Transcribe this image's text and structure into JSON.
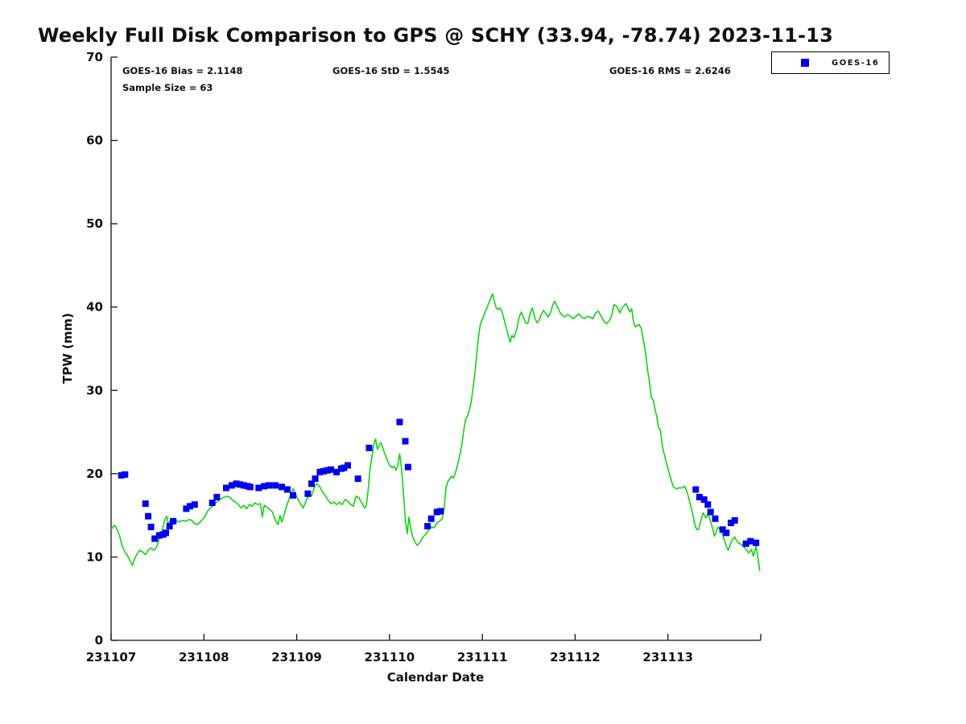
{
  "title": "Weekly Full Disk Comparison to GPS @ SCHY (33.94, -78.74) 2023-11-13",
  "annotations": {
    "bias": "GOES-16 Bias = 2.1148",
    "std": "GOES-16 StD = 1.5545",
    "rms": "GOES-16 RMS = 2.6246",
    "sample_size": "Sample Size = 63"
  },
  "legend": {
    "position": "top-right",
    "entries": [
      {
        "label": "GOES-16",
        "marker": "square",
        "color": "#0000ee"
      }
    ]
  },
  "chart_data": {
    "type": "line+scatter",
    "title": "Weekly Full Disk Comparison to GPS @ SCHY (33.94, -78.74) 2023-11-13",
    "xlabel": "Calendar Date",
    "ylabel": "TPW (mm)",
    "grid": false,
    "x_base": 231107,
    "xlim": [
      231107,
      231114
    ],
    "ylim": [
      0,
      70
    ],
    "yticks": [
      0,
      10,
      20,
      30,
      40,
      50,
      60,
      70
    ],
    "xticks": [
      231107,
      231108,
      231109,
      231110,
      231111,
      231112,
      231113
    ],
    "series": [
      {
        "name": "GPS",
        "type": "line",
        "color": "#00d400",
        "x_days": [
          0.0,
          0.02,
          0.04,
          0.06,
          0.09,
          0.12,
          0.15,
          0.18,
          0.21,
          0.23,
          0.25,
          0.28,
          0.31,
          0.34,
          0.37,
          0.4,
          0.43,
          0.46,
          0.49,
          0.52,
          0.55,
          0.58,
          0.6,
          0.62,
          0.64,
          0.67,
          0.7,
          0.73,
          0.77,
          0.8,
          0.84,
          0.87,
          0.9,
          0.93,
          0.96,
          1.0,
          1.04,
          1.08,
          1.12,
          1.16,
          1.2,
          1.25,
          1.28,
          1.31,
          1.34,
          1.37,
          1.4,
          1.43,
          1.46,
          1.49,
          1.52,
          1.55,
          1.58,
          1.61,
          1.63,
          1.65,
          1.68,
          1.71,
          1.74,
          1.77,
          1.8,
          1.82,
          1.84,
          1.87,
          1.9,
          1.93,
          1.96,
          1.99,
          2.02,
          2.05,
          2.07,
          2.1,
          2.13,
          2.16,
          2.19,
          2.22,
          2.25,
          2.28,
          2.31,
          2.34,
          2.37,
          2.4,
          2.43,
          2.46,
          2.49,
          2.52,
          2.55,
          2.58,
          2.61,
          2.64,
          2.67,
          2.7,
          2.73,
          2.75,
          2.77,
          2.79,
          2.81,
          2.83,
          2.85,
          2.87,
          2.89,
          2.91,
          2.94,
          2.97,
          3.0,
          3.03,
          3.05,
          3.07,
          3.09,
          3.11,
          3.13,
          3.15,
          3.17,
          3.19,
          3.21,
          3.23,
          3.25,
          3.28,
          3.3,
          3.33,
          3.36,
          3.39,
          3.42,
          3.45,
          3.48,
          3.51,
          3.54,
          3.57,
          3.59,
          3.61,
          3.63,
          3.65,
          3.67,
          3.69,
          3.72,
          3.75,
          3.78,
          3.8,
          3.82,
          3.84,
          3.86,
          3.88,
          3.9,
          3.92,
          3.94,
          3.96,
          3.98,
          4.0,
          4.03,
          4.06,
          4.08,
          4.11,
          4.13,
          4.15,
          4.17,
          4.19,
          4.21,
          4.24,
          4.27,
          4.3,
          4.32,
          4.34,
          4.37,
          4.4,
          4.42,
          4.44,
          4.47,
          4.49,
          4.52,
          4.54,
          4.56,
          4.59,
          4.61,
          4.64,
          4.66,
          4.69,
          4.71,
          4.74,
          4.76,
          4.78,
          4.81,
          4.83,
          4.86,
          4.89,
          4.92,
          4.95,
          4.98,
          5.01,
          5.04,
          5.07,
          5.1,
          5.13,
          5.16,
          5.19,
          5.22,
          5.25,
          5.28,
          5.31,
          5.34,
          5.37,
          5.39,
          5.42,
          5.45,
          5.48,
          5.5,
          5.53,
          5.55,
          5.57,
          5.59,
          5.61,
          5.63,
          5.65,
          5.67,
          5.69,
          5.71,
          5.73,
          5.76,
          5.78,
          5.8,
          5.82,
          5.84,
          5.86,
          5.88,
          5.9,
          5.92,
          5.94,
          5.97,
          6.0,
          6.03,
          6.06,
          6.09,
          6.12,
          6.15,
          6.18,
          6.21,
          6.24,
          6.27,
          6.29,
          6.31,
          6.33,
          6.36,
          6.38,
          6.41,
          6.43,
          6.45,
          6.47,
          6.5,
          6.52,
          6.54,
          6.56,
          6.58,
          6.61,
          6.63,
          6.65,
          6.67,
          6.69,
          6.72,
          6.74,
          6.76,
          6.79,
          6.82,
          6.85,
          6.87,
          6.9,
          6.92,
          6.95,
          6.97,
          6.99
        ],
        "y": [
          13.3,
          13.6,
          13.8,
          13.4,
          12.6,
          11.3,
          10.6,
          10.1,
          9.4,
          9.0,
          9.7,
          10.4,
          10.8,
          10.6,
          10.3,
          10.8,
          11.1,
          10.8,
          11.2,
          12.2,
          13.2,
          14.5,
          14.9,
          13.8,
          14.5,
          14.2,
          14.4,
          14.2,
          14.4,
          14.3,
          14.5,
          14.4,
          14.0,
          13.9,
          14.2,
          14.7,
          15.5,
          16.0,
          16.4,
          16.8,
          17.1,
          17.3,
          17.2,
          16.8,
          16.6,
          16.3,
          15.9,
          16.2,
          15.8,
          16.3,
          16.1,
          16.5,
          16.3,
          16.4,
          14.8,
          16.2,
          16.0,
          15.7,
          15.4,
          14.4,
          13.9,
          15.0,
          14.2,
          15.3,
          16.4,
          17.3,
          18.2,
          17.5,
          16.8,
          16.2,
          15.9,
          16.7,
          17.4,
          17.3,
          18.4,
          18.8,
          18.4,
          17.8,
          17.3,
          16.8,
          16.4,
          16.6,
          16.3,
          16.6,
          16.3,
          16.9,
          16.7,
          16.3,
          16.1,
          17.3,
          17.1,
          16.5,
          15.9,
          16.1,
          18.0,
          20.5,
          22.0,
          23.4,
          24.2,
          22.9,
          23.5,
          23.7,
          22.7,
          21.8,
          21.0,
          20.7,
          20.9,
          20.4,
          21.0,
          22.4,
          20.6,
          17.8,
          14.5,
          12.8,
          14.8,
          13.4,
          12.4,
          11.7,
          11.4,
          11.8,
          12.4,
          12.7,
          13.2,
          13.6,
          13.5,
          14.1,
          14.3,
          14.6,
          16.0,
          18.4,
          19.1,
          19.4,
          19.7,
          19.5,
          20.5,
          21.8,
          23.5,
          25.2,
          26.5,
          26.9,
          27.6,
          28.6,
          30.2,
          32.0,
          34.3,
          36.5,
          38.0,
          38.5,
          39.4,
          40.2,
          40.8,
          41.6,
          40.7,
          39.9,
          39.7,
          39.9,
          39.5,
          38.3,
          37.0,
          35.8,
          36.6,
          36.3,
          37.3,
          38.9,
          39.4,
          38.8,
          38.1,
          38.0,
          39.4,
          39.9,
          38.9,
          38.1,
          38.4,
          39.2,
          39.6,
          39.1,
          38.8,
          39.5,
          40.3,
          40.7,
          40.0,
          39.5,
          39.0,
          38.8,
          39.1,
          38.9,
          38.6,
          38.9,
          39.2,
          38.8,
          38.6,
          38.9,
          38.8,
          38.6,
          39.3,
          39.5,
          38.9,
          38.3,
          38.0,
          38.4,
          38.8,
          40.3,
          40.1,
          39.3,
          39.8,
          40.2,
          40.4,
          39.9,
          39.4,
          39.8,
          38.1,
          37.6,
          37.8,
          37.9,
          37.5,
          36.4,
          34.5,
          32.5,
          31.1,
          29.2,
          28.9,
          27.8,
          26.8,
          25.5,
          25.2,
          23.3,
          21.9,
          20.6,
          19.4,
          18.4,
          18.2,
          18.3,
          18.3,
          18.5,
          17.7,
          16.4,
          15.0,
          13.9,
          13.3,
          13.3,
          14.6,
          15.3,
          14.7,
          15.2,
          14.6,
          13.9,
          12.5,
          13.0,
          13.6,
          13.3,
          12.9,
          12.0,
          11.3,
          10.8,
          11.5,
          12.0,
          12.4,
          12.0,
          11.7,
          11.5,
          11.2,
          10.8,
          10.5,
          10.9,
          10.1,
          11.3,
          9.9,
          8.4
        ]
      },
      {
        "name": "GOES-16",
        "type": "scatter",
        "color": "#0000ee",
        "marker_size": 8,
        "x_days": [
          0.11,
          0.15,
          0.37,
          0.4,
          0.43,
          0.47,
          0.52,
          0.56,
          0.59,
          0.63,
          0.67,
          0.81,
          0.85,
          0.9,
          1.09,
          1.14,
          1.24,
          1.3,
          1.35,
          1.39,
          1.43,
          1.47,
          1.5,
          1.59,
          1.65,
          1.7,
          1.77,
          1.84,
          1.9,
          1.96,
          2.12,
          2.16,
          2.2,
          2.25,
          2.29,
          2.33,
          2.37,
          2.43,
          2.48,
          2.51,
          2.55,
          2.66,
          2.78,
          3.11,
          3.17,
          3.2,
          3.41,
          3.45,
          3.51,
          3.55,
          6.3,
          6.34,
          6.39,
          6.43,
          6.46,
          6.51,
          6.59,
          6.63,
          6.68,
          6.72,
          6.84,
          6.89,
          6.95
        ],
        "y": [
          19.8,
          19.9,
          16.4,
          14.9,
          13.6,
          12.2,
          12.6,
          12.7,
          12.9,
          13.7,
          14.3,
          15.8,
          16.1,
          16.3,
          16.5,
          17.2,
          18.3,
          18.6,
          18.8,
          18.7,
          18.6,
          18.5,
          18.4,
          18.3,
          18.5,
          18.6,
          18.6,
          18.4,
          18.1,
          17.4,
          17.6,
          18.8,
          19.4,
          20.2,
          20.3,
          20.4,
          20.5,
          20.2,
          20.6,
          20.7,
          21.0,
          19.4,
          23.1,
          26.2,
          23.9,
          20.8,
          13.7,
          14.6,
          15.4,
          15.5,
          18.1,
          17.2,
          16.9,
          16.3,
          15.4,
          14.6,
          13.3,
          12.9,
          14.1,
          14.4,
          11.6,
          11.9,
          11.7
        ]
      }
    ]
  },
  "colors": {
    "line_green": "#00d400",
    "marker_blue": "#0000ee",
    "axis": "#111111",
    "background": "#ffffff"
  }
}
